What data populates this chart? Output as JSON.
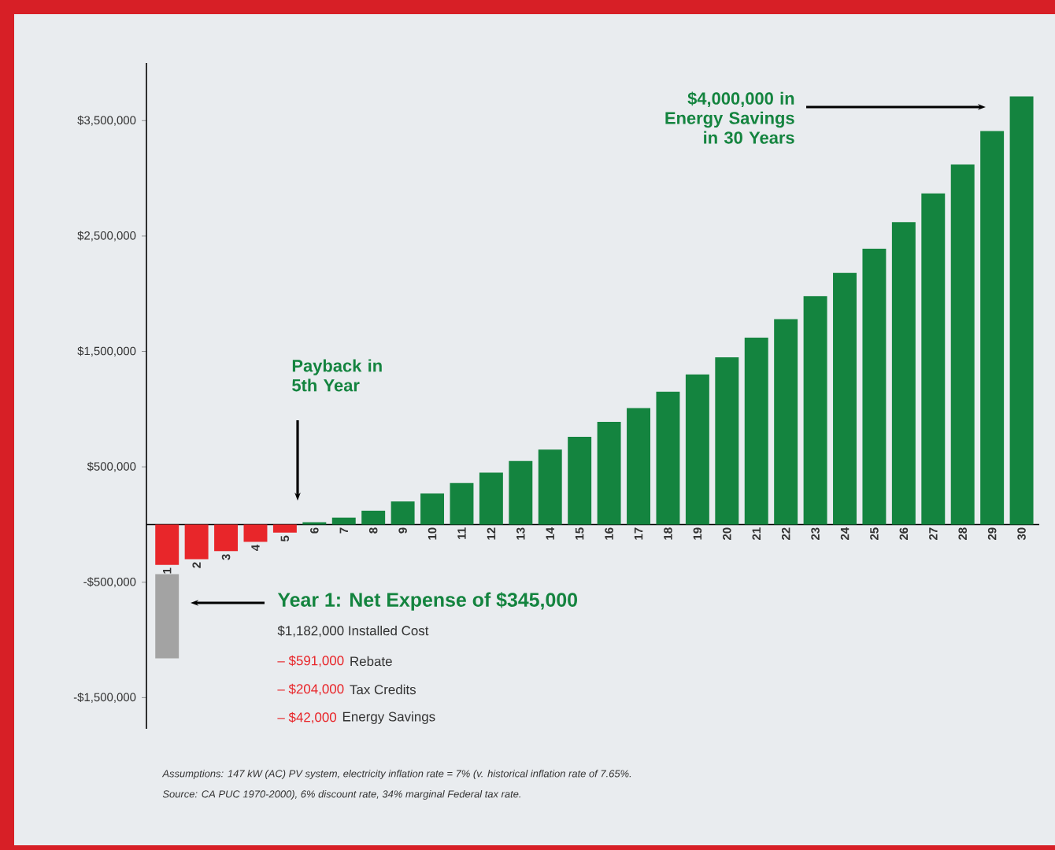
{
  "chart_data": {
    "type": "bar",
    "categories": [
      "1",
      "2",
      "3",
      "4",
      "5",
      "6",
      "7",
      "8",
      "9",
      "10",
      "11",
      "12",
      "13",
      "14",
      "15",
      "16",
      "17",
      "18",
      "19",
      "20",
      "21",
      "22",
      "23",
      "24",
      "25",
      "26",
      "27",
      "28",
      "29",
      "30"
    ],
    "series": [
      {
        "colors": [
          "#e8262a",
          "#e8262a",
          "#e8262a",
          "#e8262a",
          "#e8262a",
          "#14843f",
          "#14843f",
          "#14843f",
          "#14843f",
          "#14843f",
          "#14843f",
          "#14843f",
          "#14843f",
          "#14843f",
          "#14843f",
          "#14843f",
          "#14843f",
          "#14843f",
          "#14843f",
          "#14843f",
          "#14843f",
          "#14843f",
          "#14843f",
          "#14843f",
          "#14843f",
          "#14843f",
          "#14843f",
          "#14843f",
          "#14843f",
          "#14843f"
        ],
        "values": [
          -350000,
          -300000,
          -230000,
          -150000,
          -70000,
          20000,
          60000,
          120000,
          200000,
          270000,
          360000,
          450000,
          550000,
          650000,
          760000,
          890000,
          1010000,
          1150000,
          1300000,
          1450000,
          1620000,
          1780000,
          1980000,
          2180000,
          2390000,
          2620000,
          2870000,
          3120000,
          3410000,
          3710000
        ]
      },
      {
        "color": "#a3a3a3",
        "base": [
          -430000,
          null,
          null,
          null,
          null,
          null,
          null,
          null,
          null,
          null,
          null,
          null,
          null,
          null,
          null,
          null,
          null,
          null,
          null,
          null,
          null,
          null,
          null,
          null,
          null,
          null,
          null,
          null,
          null,
          null
        ],
        "values": [
          -730000,
          null,
          null,
          null,
          null,
          null,
          null,
          null,
          null,
          null,
          null,
          null,
          null,
          null,
          null,
          null,
          null,
          null,
          null,
          null,
          null,
          null,
          null,
          null,
          null,
          null,
          null,
          null,
          null,
          null
        ]
      }
    ],
    "ylim": [
      -1770000,
      4000000
    ],
    "yticks": [
      {
        "value": 3500000,
        "label": "$3,500,000"
      },
      {
        "value": 2500000,
        "label": "$2,500,000"
      },
      {
        "value": 1500000,
        "label": "$1,500,000"
      },
      {
        "value": 500000,
        "label": "$500,000"
      },
      {
        "value": -500000,
        "label": "-$500,000"
      },
      {
        "value": -1500000,
        "label": "-$1,500,000"
      }
    ],
    "annotations": [
      "$4,000,000 in Energy Savings in 30 Years",
      "Payback in 5th Year",
      "Year 1: Net Expense of $345,000",
      "$1,182,000 Installed Cost",
      "– $591,000",
      "Rebate",
      "– $204,000",
      "Tax Credits",
      "–  $42,000",
      "Energy Savings",
      "Assumptions: 147 kW (AC) PV system, electricity inflation rate = 7% (v. historical inflation rate of 7.65%.",
      "Source: CA PUC 1970-2000), 6% discount rate, 34% marginal Federal tax rate."
    ]
  }
}
